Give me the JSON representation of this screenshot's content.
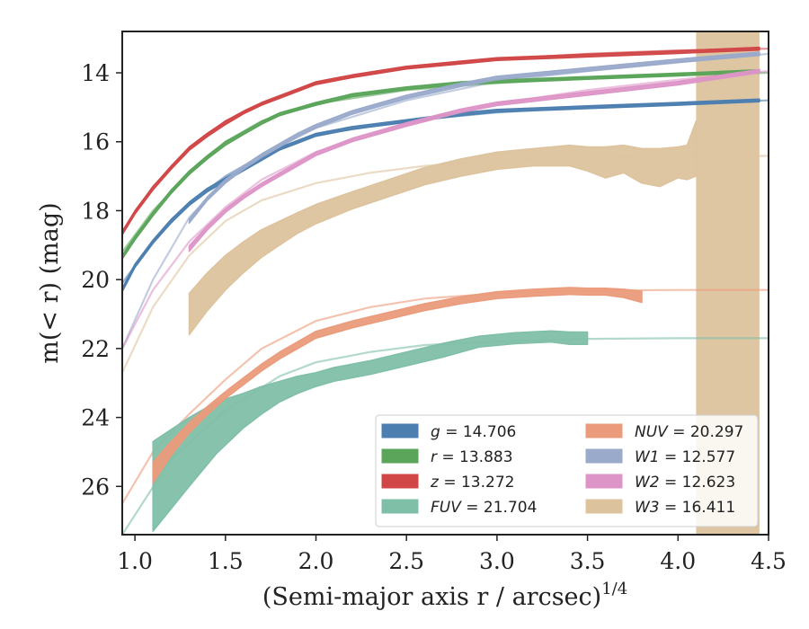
{
  "chart_data": {
    "type": "area",
    "xlabel": "(Semi-major axis r / arcsec)",
    "xlabel_exp": "1/4",
    "ylabel": "m(< r) (mag)",
    "xlim": [
      0.93,
      4.5
    ],
    "ylim": [
      27.4,
      12.8
    ],
    "y_inverted": true,
    "grid": false,
    "legend_position": "lower-right",
    "xticks": [
      1.0,
      1.5,
      2.0,
      2.5,
      3.0,
      3.5,
      4.0,
      4.5
    ],
    "xtick_labels": [
      "1.0",
      "1.5",
      "2.0",
      "2.5",
      "3.0",
      "3.5",
      "4.0",
      "4.5"
    ],
    "yticks": [
      14,
      16,
      18,
      20,
      22,
      24,
      26
    ],
    "ytick_labels": [
      "14",
      "16",
      "18",
      "20",
      "22",
      "24",
      "26"
    ],
    "series": [
      {
        "name": "g",
        "label_value": "14.706",
        "color": "#4c7fb0",
        "fit_x": [
          0.93,
          1.1,
          1.3,
          1.5,
          1.7,
          2.0,
          2.5,
          3.0,
          3.5,
          4.0,
          4.5
        ],
        "fit_y": [
          20.1,
          18.9,
          17.8,
          17.0,
          16.4,
          15.8,
          15.4,
          15.15,
          15.0,
          14.9,
          14.8
        ],
        "x": [
          0.93,
          1.0,
          1.1,
          1.2,
          1.3,
          1.4,
          1.5,
          1.6,
          1.7,
          1.8,
          1.9,
          2.0,
          2.2,
          2.5,
          2.8,
          3.0,
          3.5,
          4.0,
          4.45
        ],
        "y": [
          20.3,
          19.6,
          18.9,
          18.3,
          17.8,
          17.4,
          17.1,
          16.8,
          16.5,
          16.2,
          16.0,
          15.8,
          15.6,
          15.4,
          15.2,
          15.1,
          15.0,
          14.9,
          14.8
        ],
        "err": [
          0.05,
          0.05,
          0.05,
          0.05,
          0.05,
          0.05,
          0.05,
          0.04,
          0.04,
          0.04,
          0.04,
          0.04,
          0.04,
          0.04,
          0.04,
          0.04,
          0.04,
          0.04,
          0.04
        ]
      },
      {
        "name": "r",
        "label_value": "13.883",
        "color": "#5aa55a",
        "fit_x": [
          0.93,
          1.1,
          1.3,
          1.5,
          1.7,
          2.0,
          2.5,
          3.0,
          3.5,
          4.0,
          4.5
        ],
        "fit_y": [
          19.2,
          18.0,
          16.9,
          16.0,
          15.4,
          14.9,
          14.5,
          14.3,
          14.15,
          14.05,
          14.0
        ],
        "x": [
          0.93,
          1.0,
          1.1,
          1.2,
          1.3,
          1.4,
          1.5,
          1.6,
          1.7,
          1.8,
          1.9,
          2.0,
          2.2,
          2.5,
          2.8,
          3.0,
          3.5,
          4.0,
          4.45
        ],
        "y": [
          19.35,
          18.8,
          18.1,
          17.45,
          16.9,
          16.45,
          16.05,
          15.75,
          15.45,
          15.2,
          15.05,
          14.9,
          14.65,
          14.45,
          14.3,
          14.25,
          14.15,
          14.05,
          13.95
        ],
        "err": [
          0.05,
          0.05,
          0.05,
          0.05,
          0.05,
          0.05,
          0.05,
          0.04,
          0.04,
          0.04,
          0.04,
          0.04,
          0.04,
          0.04,
          0.04,
          0.04,
          0.04,
          0.04,
          0.04
        ]
      },
      {
        "name": "z",
        "label_value": "13.272",
        "color": "#d14747",
        "fit_x": [
          0.93,
          1.1,
          1.3,
          1.5,
          1.7,
          2.0,
          2.5,
          3.0,
          3.5,
          4.0,
          4.5
        ],
        "fit_y": [
          18.6,
          17.3,
          16.2,
          15.4,
          14.9,
          14.3,
          13.85,
          13.6,
          13.45,
          13.35,
          13.3
        ],
        "x": [
          0.93,
          1.0,
          1.1,
          1.2,
          1.3,
          1.4,
          1.5,
          1.6,
          1.7,
          1.8,
          1.9,
          2.0,
          2.2,
          2.5,
          2.8,
          3.0,
          3.5,
          4.0,
          4.45
        ],
        "y": [
          18.65,
          18.05,
          17.35,
          16.75,
          16.2,
          15.8,
          15.45,
          15.15,
          14.9,
          14.7,
          14.5,
          14.3,
          14.1,
          13.85,
          13.7,
          13.6,
          13.5,
          13.4,
          13.3
        ],
        "err": [
          0.05,
          0.05,
          0.05,
          0.05,
          0.05,
          0.05,
          0.05,
          0.04,
          0.04,
          0.04,
          0.04,
          0.04,
          0.04,
          0.04,
          0.04,
          0.04,
          0.04,
          0.04,
          0.04
        ]
      },
      {
        "name": "FUV",
        "label_value": "21.704",
        "color": "#7fbfa8",
        "fit_x": [
          0.93,
          1.2,
          1.5,
          1.8,
          2.0,
          2.3,
          2.6,
          3.0,
          3.5,
          4.0,
          4.5
        ],
        "fit_y": [
          27.4,
          25.2,
          23.8,
          22.8,
          22.4,
          22.1,
          21.9,
          21.8,
          21.72,
          21.7,
          21.7
        ],
        "x": [
          1.1,
          1.3,
          1.45,
          1.6,
          1.7,
          1.8,
          1.9,
          2.0,
          2.1,
          2.3,
          2.5,
          2.7,
          2.9,
          3.1,
          3.3,
          3.4,
          3.5
        ],
        "y": [
          26.0,
          25.0,
          24.3,
          23.8,
          23.5,
          23.25,
          23.05,
          22.9,
          22.75,
          22.55,
          22.3,
          22.05,
          21.8,
          21.7,
          21.65,
          21.7,
          21.7
        ],
        "err": [
          1.3,
          1.0,
          0.75,
          0.5,
          0.4,
          0.3,
          0.25,
          0.2,
          0.2,
          0.2,
          0.2,
          0.2,
          0.16,
          0.16,
          0.16,
          0.18,
          0.18
        ]
      },
      {
        "name": "NUV",
        "label_value": "20.297",
        "color": "#eb9b7b",
        "fit_x": [
          0.93,
          1.1,
          1.3,
          1.5,
          1.7,
          2.0,
          2.3,
          2.6,
          3.0,
          3.5,
          4.0,
          4.5
        ],
        "fit_y": [
          26.5,
          25.0,
          23.9,
          22.9,
          22.0,
          21.2,
          20.8,
          20.55,
          20.4,
          20.32,
          20.3,
          20.3
        ],
        "x": [
          1.1,
          1.2,
          1.3,
          1.4,
          1.5,
          1.6,
          1.7,
          1.8,
          1.9,
          2.0,
          2.2,
          2.4,
          2.6,
          2.8,
          3.0,
          3.2,
          3.4,
          3.5,
          3.6,
          3.7,
          3.8
        ],
        "y": [
          25.6,
          24.9,
          24.3,
          23.8,
          23.35,
          22.95,
          22.55,
          22.2,
          21.9,
          21.6,
          21.3,
          21.05,
          20.8,
          20.6,
          20.45,
          20.38,
          20.33,
          20.35,
          20.35,
          20.4,
          20.5
        ],
        "err": [
          0.3,
          0.2,
          0.15,
          0.12,
          0.1,
          0.1,
          0.1,
          0.1,
          0.1,
          0.1,
          0.1,
          0.1,
          0.1,
          0.1,
          0.1,
          0.1,
          0.1,
          0.1,
          0.1,
          0.12,
          0.16
        ]
      },
      {
        "name": "W1",
        "label_value": "12.577",
        "color": "#9aaacb",
        "fit_x": [
          0.93,
          1.1,
          1.3,
          1.5,
          1.7,
          2.0,
          2.5,
          3.0,
          3.5,
          4.0,
          4.5
        ],
        "fit_y": [
          22.0,
          20.0,
          18.2,
          17.1,
          16.4,
          15.6,
          14.8,
          14.25,
          13.95,
          13.7,
          13.45
        ],
        "x": [
          1.3,
          1.4,
          1.5,
          1.6,
          1.7,
          1.8,
          1.9,
          2.0,
          2.2,
          2.5,
          2.8,
          3.0,
          3.5,
          4.0,
          4.45
        ],
        "y": [
          18.3,
          17.65,
          17.15,
          16.75,
          16.4,
          16.1,
          15.8,
          15.55,
          15.15,
          14.7,
          14.35,
          14.15,
          13.9,
          13.65,
          13.45
        ],
        "err": [
          0.06,
          0.05,
          0.05,
          0.05,
          0.05,
          0.05,
          0.05,
          0.05,
          0.05,
          0.05,
          0.05,
          0.05,
          0.05,
          0.05,
          0.05
        ]
      },
      {
        "name": "W2",
        "label_value": "12.623",
        "color": "#dd95c7",
        "fit_x": [
          0.93,
          1.1,
          1.3,
          1.5,
          1.7,
          2.0,
          2.5,
          3.0,
          3.5,
          4.0,
          4.5
        ],
        "fit_y": [
          22.0,
          20.3,
          18.9,
          17.9,
          17.1,
          16.3,
          15.5,
          14.9,
          14.5,
          14.2,
          13.95
        ],
        "x": [
          1.3,
          1.4,
          1.5,
          1.6,
          1.7,
          1.8,
          1.9,
          2.0,
          2.2,
          2.5,
          2.8,
          3.0,
          3.5,
          4.0,
          4.45
        ],
        "y": [
          19.1,
          18.5,
          18.0,
          17.6,
          17.25,
          16.95,
          16.65,
          16.35,
          15.95,
          15.5,
          15.1,
          14.9,
          14.6,
          14.3,
          13.95
        ],
        "err": [
          0.08,
          0.06,
          0.05,
          0.05,
          0.05,
          0.05,
          0.05,
          0.05,
          0.05,
          0.05,
          0.05,
          0.05,
          0.05,
          0.05,
          0.05
        ]
      },
      {
        "name": "W3",
        "label_value": "16.411",
        "color": "#ddc39d",
        "fit_x": [
          0.93,
          1.1,
          1.3,
          1.5,
          1.7,
          2.0,
          2.3,
          2.6,
          3.0,
          3.5,
          4.0,
          4.5
        ],
        "fit_y": [
          22.7,
          20.8,
          19.3,
          18.3,
          17.7,
          17.2,
          16.9,
          16.7,
          16.55,
          16.45,
          16.42,
          16.41
        ],
        "x": [
          1.3,
          1.4,
          1.5,
          1.6,
          1.7,
          1.8,
          1.9,
          2.0,
          2.2,
          2.4,
          2.6,
          2.8,
          3.0,
          3.2,
          3.4,
          3.5,
          3.6,
          3.7,
          3.8,
          3.9,
          4.0,
          4.05,
          4.1
        ],
        "y": [
          21.0,
          20.35,
          19.8,
          19.35,
          18.95,
          18.65,
          18.35,
          18.1,
          17.7,
          17.35,
          17.0,
          16.75,
          16.55,
          16.45,
          16.4,
          16.5,
          16.6,
          16.5,
          16.7,
          16.75,
          16.6,
          16.6,
          16.2
        ],
        "err": [
          0.6,
          0.55,
          0.5,
          0.45,
          0.4,
          0.35,
          0.3,
          0.28,
          0.25,
          0.25,
          0.25,
          0.25,
          0.25,
          0.25,
          0.3,
          0.35,
          0.45,
          0.4,
          0.5,
          0.55,
          0.45,
          0.5,
          0.8
        ],
        "outer_band": {
          "x": [
            4.1,
            4.45
          ],
          "y_low": [
            12.8,
            12.8
          ],
          "y_high": [
            27.4,
            27.4
          ]
        }
      }
    ]
  }
}
